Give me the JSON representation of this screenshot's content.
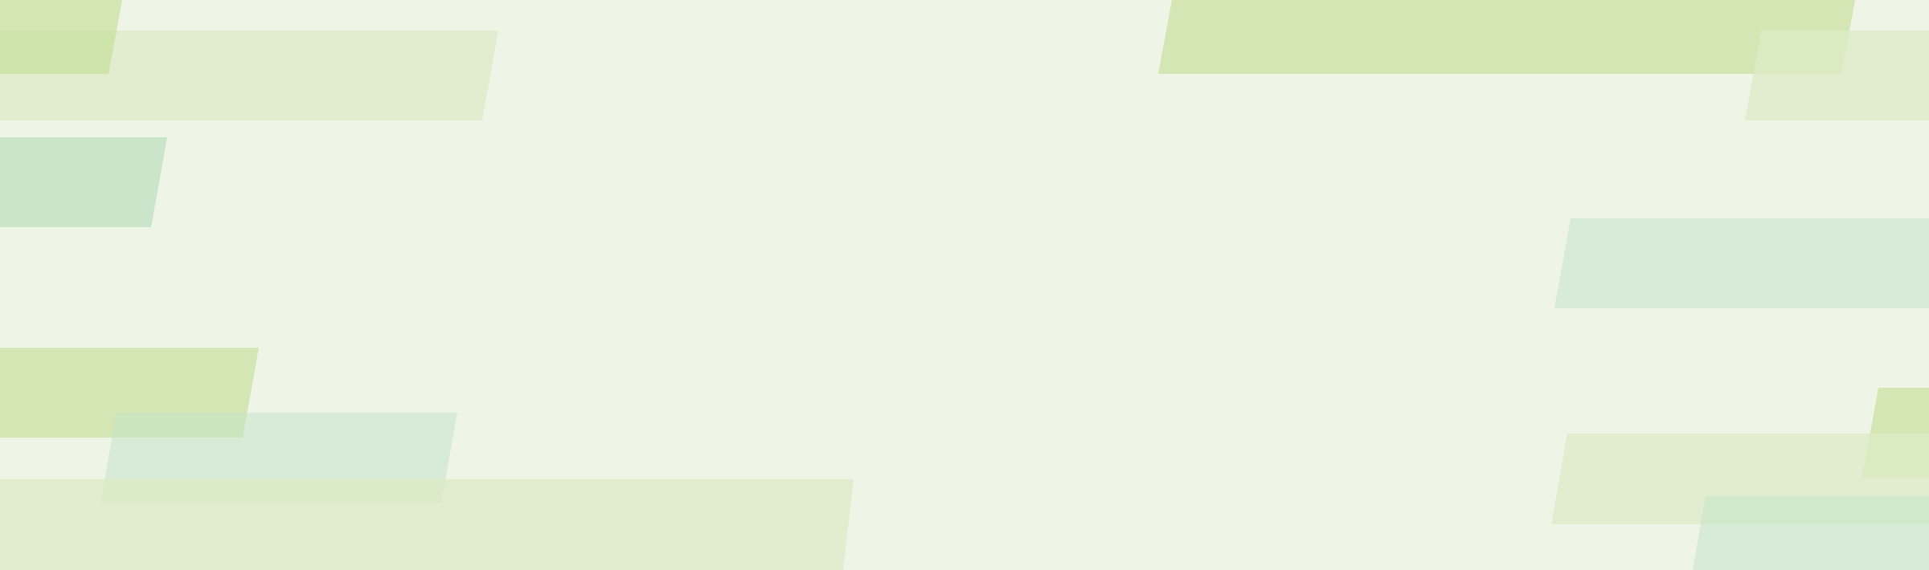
{
  "background": {
    "color": "#eef4e6",
    "decoration": "slanted-bars-pattern",
    "palette": {
      "lime": "#c8e09c",
      "pale_lime": "#dcebc5",
      "mint": "#c6e3c8"
    }
  }
}
